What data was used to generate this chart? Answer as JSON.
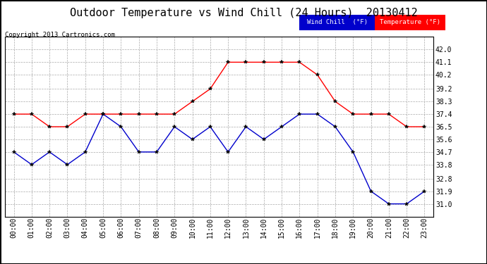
{
  "title": "Outdoor Temperature vs Wind Chill (24 Hours)  20130412",
  "copyright": "Copyright 2013 Cartronics.com",
  "hours": [
    "00:00",
    "01:00",
    "02:00",
    "03:00",
    "04:00",
    "05:00",
    "06:00",
    "07:00",
    "08:00",
    "09:00",
    "10:00",
    "11:00",
    "12:00",
    "13:00",
    "14:00",
    "15:00",
    "16:00",
    "17:00",
    "18:00",
    "19:00",
    "20:00",
    "21:00",
    "22:00",
    "23:00"
  ],
  "temperature": [
    37.4,
    37.4,
    36.5,
    36.5,
    37.4,
    37.4,
    37.4,
    37.4,
    37.4,
    37.4,
    38.3,
    39.2,
    41.1,
    41.1,
    41.1,
    41.1,
    41.1,
    40.2,
    38.3,
    37.4,
    37.4,
    37.4,
    36.5,
    36.5
  ],
  "wind_chill": [
    34.7,
    33.8,
    34.7,
    33.8,
    34.7,
    37.4,
    36.5,
    34.7,
    34.7,
    36.5,
    35.6,
    36.5,
    34.7,
    36.5,
    35.6,
    36.5,
    37.4,
    37.4,
    36.5,
    34.7,
    31.9,
    31.0,
    31.0,
    31.9
  ],
  "temp_color": "#ff0000",
  "wind_color": "#0000cc",
  "ylim_min": 30.1,
  "ylim_max": 42.9,
  "yticks": [
    31.0,
    31.9,
    32.8,
    33.8,
    34.7,
    35.6,
    36.5,
    37.4,
    38.3,
    39.2,
    40.2,
    41.1,
    42.0
  ],
  "bg_color": "#ffffff",
  "plot_bg": "#ffffff",
  "grid_color": "#aaaaaa",
  "title_fontsize": 11,
  "tick_fontsize": 7,
  "legend_wind_bg": "#0000cc",
  "legend_temp_bg": "#ff0000",
  "legend_text_color": "#ffffff",
  "copyright_fontsize": 6.5
}
